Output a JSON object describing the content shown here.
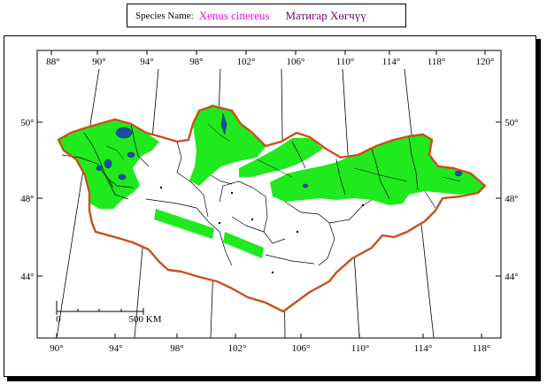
{
  "species": {
    "label": "Species Name:",
    "latin_name": "Xenus cinereus",
    "local_name": "Матигар Хөгчүү"
  },
  "map": {
    "top_longitudes": [
      "88°",
      "90°",
      "94°",
      "98°",
      "102°",
      "106°",
      "110°",
      "114°",
      "118°",
      "120°"
    ],
    "bottom_longitudes": [
      "90°",
      "94°",
      "98°",
      "102°",
      "106°",
      "110°",
      "114°",
      "118°"
    ],
    "left_latitudes": [
      "50°",
      "48°",
      "44°"
    ],
    "right_latitudes": [
      "50°",
      "48°",
      "44°"
    ],
    "scale_start": "0",
    "scale_end": "500 KM",
    "colors": {
      "range": "#1eea1e",
      "border": "#c8501a",
      "water": "#1a4fa0",
      "provinces": "#000000"
    }
  }
}
